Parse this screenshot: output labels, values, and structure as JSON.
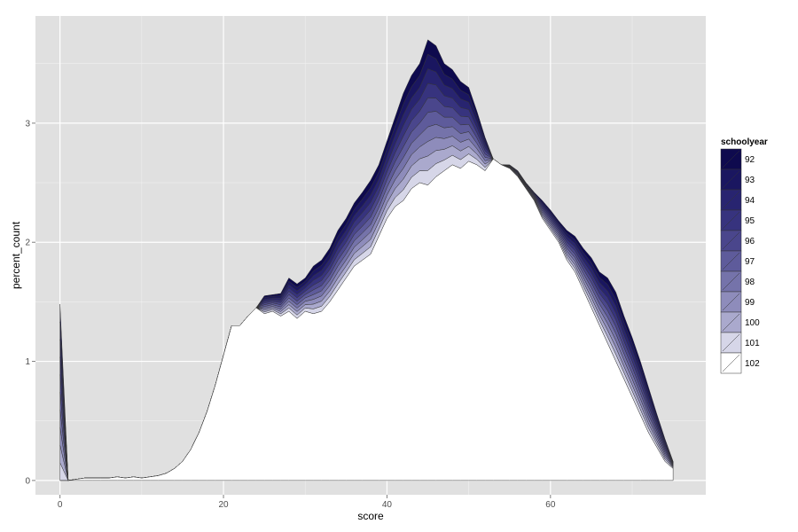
{
  "chart_data": {
    "type": "area",
    "stacked": true,
    "xlabel": "score",
    "ylabel": "percent_count",
    "xlim": [
      -3,
      79
    ],
    "ylim": [
      -0.12,
      3.9
    ],
    "x_ticks": [
      0,
      20,
      40,
      60
    ],
    "y_ticks": [
      0,
      1,
      2,
      3
    ],
    "grid": true,
    "legend": {
      "title": "schoolyear",
      "position": "right"
    },
    "x": [
      0,
      1,
      2,
      3,
      4,
      5,
      6,
      7,
      8,
      9,
      10,
      11,
      12,
      13,
      14,
      15,
      16,
      17,
      18,
      19,
      20,
      21,
      22,
      23,
      24,
      25,
      26,
      27,
      28,
      29,
      30,
      31,
      32,
      33,
      34,
      35,
      36,
      37,
      38,
      39,
      40,
      41,
      42,
      43,
      44,
      45,
      46,
      47,
      48,
      49,
      50,
      51,
      52,
      53,
      54,
      55,
      56,
      57,
      58,
      59,
      60,
      61,
      62,
      63,
      64,
      65,
      66,
      67,
      68,
      69,
      70,
      71,
      72,
      73,
      74,
      75
    ],
    "top_values": [
      1.48,
      0,
      0.01,
      0.02,
      0.02,
      0.02,
      0.02,
      0.03,
      0.02,
      0.03,
      0.02,
      0.03,
      0.04,
      0.06,
      0.1,
      0.16,
      0.26,
      0.4,
      0.58,
      0.8,
      1.05,
      1.3,
      1.3,
      1.38,
      1.45,
      1.55,
      1.56,
      1.57,
      1.7,
      1.65,
      1.7,
      1.8,
      1.85,
      1.95,
      2.1,
      2.2,
      2.33,
      2.42,
      2.52,
      2.65,
      2.85,
      3.05,
      3.25,
      3.4,
      3.5,
      3.7,
      3.65,
      3.5,
      3.45,
      3.35,
      3.3,
      3.1,
      2.88,
      2.7,
      2.65,
      2.65,
      2.6,
      2.5,
      2.42,
      2.35,
      2.27,
      2.18,
      2.1,
      2.05,
      1.95,
      1.87,
      1.75,
      1.7,
      1.58,
      1.38,
      1.2,
      1.0,
      0.78,
      0.56,
      0.35,
      0.16
    ],
    "base_values": [
      0,
      0,
      0.01,
      0.02,
      0.02,
      0.02,
      0.02,
      0.03,
      0.02,
      0.03,
      0.02,
      0.03,
      0.04,
      0.06,
      0.1,
      0.16,
      0.26,
      0.4,
      0.58,
      0.8,
      1.05,
      1.3,
      1.3,
      1.38,
      1.45,
      1.4,
      1.42,
      1.38,
      1.42,
      1.36,
      1.42,
      1.4,
      1.42,
      1.5,
      1.6,
      1.7,
      1.8,
      1.85,
      1.9,
      2.05,
      2.2,
      2.3,
      2.35,
      2.45,
      2.5,
      2.48,
      2.55,
      2.6,
      2.65,
      2.62,
      2.68,
      2.65,
      2.6,
      2.7,
      2.65,
      2.62,
      2.55,
      2.45,
      2.35,
      2.2,
      2.1,
      2.0,
      1.85,
      1.75,
      1.6,
      1.45,
      1.3,
      1.15,
      1.0,
      0.85,
      0.7,
      0.55,
      0.4,
      0.28,
      0.16,
      0.1
    ],
    "series": [
      {
        "name": "92",
        "color": "#0e0a4e"
      },
      {
        "name": "93",
        "color": "#1a1660"
      },
      {
        "name": "94",
        "color": "#282470"
      },
      {
        "name": "95",
        "color": "#37337e"
      },
      {
        "name": "96",
        "color": "#4a468c"
      },
      {
        "name": "97",
        "color": "#5e5b9b"
      },
      {
        "name": "98",
        "color": "#7573aa"
      },
      {
        "name": "99",
        "color": "#8e8cbb"
      },
      {
        "name": "100",
        "color": "#aaa9cd"
      },
      {
        "name": "101",
        "color": "#d6d6e8"
      },
      {
        "name": "102",
        "color": "#ffffff"
      }
    ]
  }
}
